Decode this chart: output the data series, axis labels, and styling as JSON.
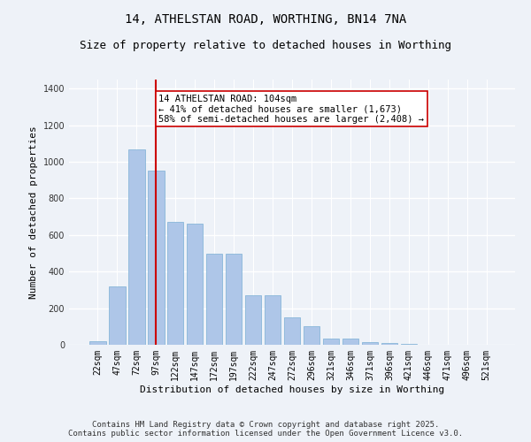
{
  "title": "14, ATHELSTAN ROAD, WORTHING, BN14 7NA",
  "subtitle": "Size of property relative to detached houses in Worthing",
  "xlabel": "Distribution of detached houses by size in Worthing",
  "ylabel": "Number of detached properties",
  "categories": [
    "22sqm",
    "47sqm",
    "72sqm",
    "97sqm",
    "122sqm",
    "147sqm",
    "172sqm",
    "197sqm",
    "222sqm",
    "247sqm",
    "272sqm",
    "296sqm",
    "321sqm",
    "346sqm",
    "371sqm",
    "396sqm",
    "421sqm",
    "446sqm",
    "471sqm",
    "496sqm",
    "521sqm"
  ],
  "values": [
    20,
    320,
    1070,
    950,
    670,
    660,
    500,
    500,
    270,
    270,
    150,
    100,
    35,
    35,
    15,
    10,
    5,
    2,
    0,
    0,
    0
  ],
  "bar_color": "#aec6e8",
  "bar_edge_color": "#7bafd4",
  "vline_x_index": 3,
  "vline_color": "#cc0000",
  "annotation_text": "14 ATHELSTAN ROAD: 104sqm\n← 41% of detached houses are smaller (1,673)\n58% of semi-detached houses are larger (2,408) →",
  "annotation_box_color": "#ffffff",
  "annotation_box_edge_color": "#cc0000",
  "ylim": [
    0,
    1450
  ],
  "yticks": [
    0,
    200,
    400,
    600,
    800,
    1000,
    1200,
    1400
  ],
  "background_color": "#eef2f8",
  "footer_text": "Contains HM Land Registry data © Crown copyright and database right 2025.\nContains public sector information licensed under the Open Government Licence v3.0.",
  "title_fontsize": 10,
  "subtitle_fontsize": 9,
  "xlabel_fontsize": 8,
  "ylabel_fontsize": 8,
  "annotation_fontsize": 7.5,
  "footer_fontsize": 6.5,
  "tick_fontsize": 7
}
